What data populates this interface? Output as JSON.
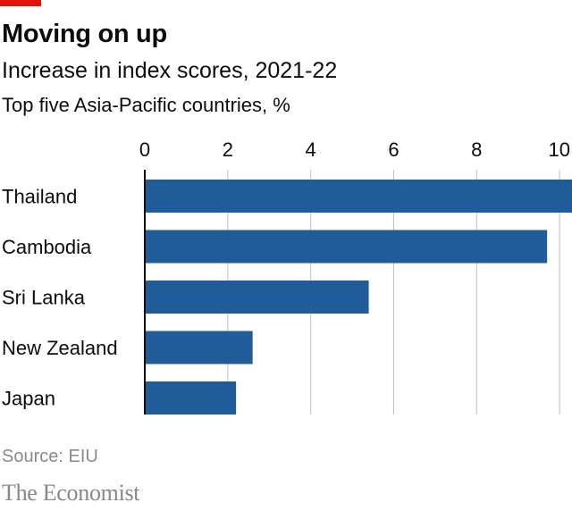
{
  "header": {
    "title": "Moving on up",
    "subtitle": "Increase in index scores, 2021-22",
    "subsubtitle": "Top five Asia-Pacific countries, %"
  },
  "footer": {
    "source": "Source: EIU",
    "brand": "The Economist"
  },
  "colors": {
    "bar": "#1f5c99",
    "accent": "#e3120b",
    "gridline": "#bfbfbf",
    "axis": "#0c0c0c",
    "text": "#0c0c0c",
    "muted": "#8a8a8a"
  },
  "chart_data": {
    "type": "bar",
    "orientation": "horizontal",
    "title": "Moving on up",
    "subtitle": "Increase in index scores, 2021-22",
    "unit": "%",
    "categories": [
      "Thailand",
      "Cambodia",
      "Sri Lanka",
      "New Zealand",
      "Japan"
    ],
    "values": [
      10.3,
      9.7,
      5.4,
      2.6,
      2.2
    ],
    "xlim": [
      0,
      10.3
    ],
    "xticks": [
      0,
      2,
      4,
      6,
      8,
      10
    ],
    "grid": true
  }
}
